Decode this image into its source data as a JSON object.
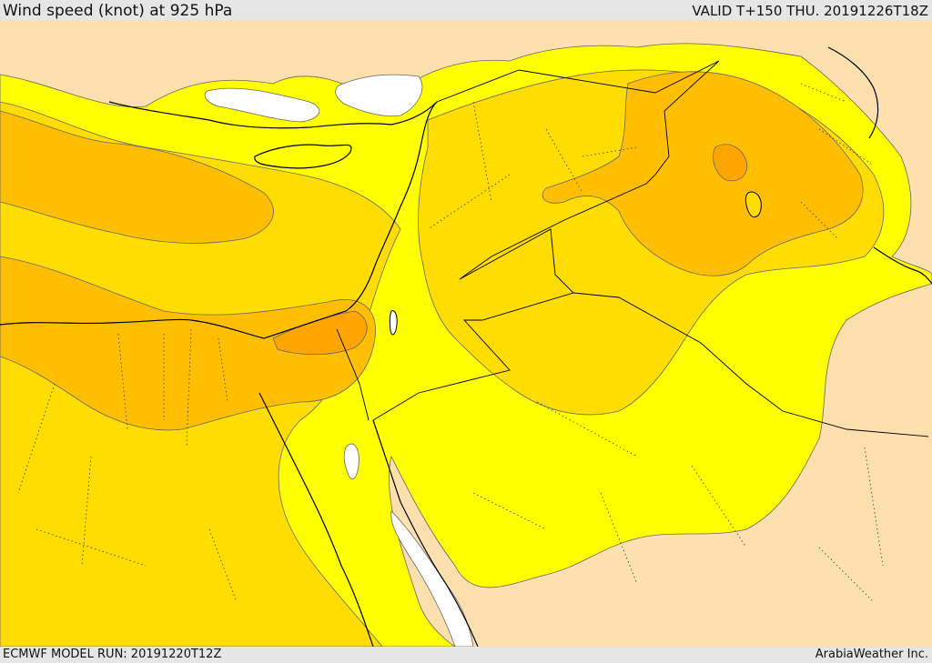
{
  "header": {
    "title": "Wind speed (knot) at 925 hPa",
    "valid_time": "VALID T+150 THU. 20191226T18Z"
  },
  "footer": {
    "model_run": "ECMWF MODEL RUN: 20191220T12Z",
    "credit": "ArabiaWeather Inc."
  },
  "map": {
    "palette": {
      "calm": "#fde0ae",
      "light": "#ffff00",
      "moderate": "#ffdd00",
      "fresh": "#ffbf00",
      "strong": "#ffa500",
      "water_calm": "#ffffff",
      "contour": "#555555",
      "coastline": "#000000"
    }
  }
}
